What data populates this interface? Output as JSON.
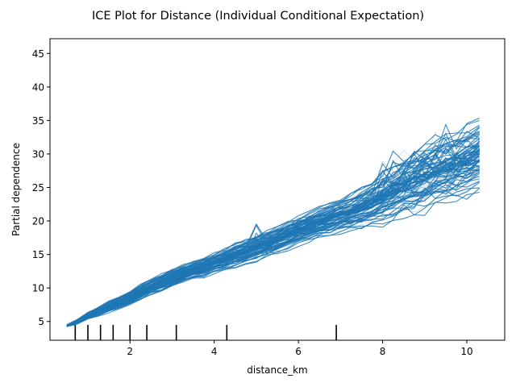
{
  "chart_data": {
    "type": "line",
    "title": "ICE Plot for Distance (Individual Conditional Expectation)",
    "xlabel": "distance_km",
    "ylabel": "Partial dependence",
    "xlim": [
      0.1,
      10.9
    ],
    "ylim": [
      2.2,
      47.2
    ],
    "x_ticks": [
      2,
      4,
      6,
      8,
      10
    ],
    "y_ticks": [
      5,
      10,
      15,
      20,
      25,
      30,
      35,
      40,
      45
    ],
    "grid": false,
    "legend": "none",
    "line_color": "#1f77b4",
    "curve_count": 100,
    "x": [
      0.5,
      0.75,
      1.0,
      1.25,
      1.5,
      1.75,
      2.0,
      2.25,
      2.5,
      2.75,
      3.0,
      3.25,
      3.5,
      3.75,
      4.0,
      4.25,
      4.5,
      4.75,
      5.0,
      5.25,
      5.5,
      5.75,
      6.0,
      6.25,
      6.5,
      6.75,
      7.0,
      7.25,
      7.5,
      7.75,
      8.0,
      8.25,
      8.5,
      8.75,
      9.0,
      9.25,
      9.5,
      9.75,
      10.0,
      10.3
    ],
    "average_curve": [
      4.4,
      5.0,
      5.9,
      6.6,
      7.3,
      7.9,
      8.7,
      9.5,
      10.3,
      10.9,
      11.6,
      12.3,
      12.8,
      13.2,
      13.9,
      14.4,
      15.1,
      15.6,
      16.2,
      16.8,
      17.4,
      18.1,
      18.8,
      19.4,
      20.0,
      20.5,
      21.1,
      21.6,
      22.2,
      23.0,
      23.9,
      24.8,
      25.6,
      26.3,
      27.2,
      27.8,
      28.4,
      28.9,
      29.5,
      30.3
    ],
    "spread": [
      0.1,
      0.2,
      0.3,
      0.4,
      0.5,
      0.5,
      0.6,
      0.7,
      0.7,
      0.8,
      0.8,
      0.8,
      0.8,
      0.9,
      0.9,
      1.0,
      1.1,
      1.1,
      1.2,
      1.2,
      1.2,
      1.3,
      1.3,
      1.4,
      1.4,
      1.5,
      1.6,
      1.7,
      1.9,
      2.1,
      2.4,
      2.6,
      2.8,
      3.0,
      3.2,
      3.2,
      3.3,
      3.3,
      3.4,
      3.5
    ],
    "rug_ticks": [
      0.7,
      1.0,
      1.3,
      1.6,
      2.0,
      2.4,
      3.1,
      4.3,
      6.9
    ]
  }
}
